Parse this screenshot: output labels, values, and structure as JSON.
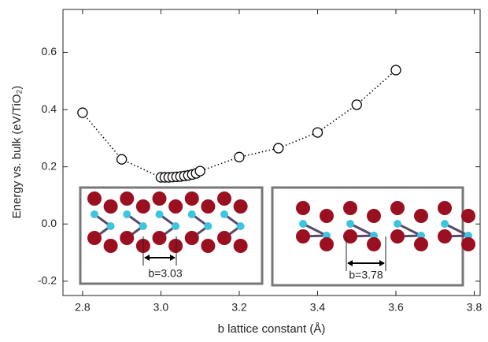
{
  "chart_data": {
    "type": "scatter",
    "xlabel": "b lattice constant (Å)",
    "ylabel": "Energy vs. bulk (eV/TiO₂)",
    "x": [
      2.8,
      2.9,
      3.0,
      3.01,
      3.02,
      3.03,
      3.04,
      3.05,
      3.06,
      3.07,
      3.08,
      3.09,
      3.1,
      3.2,
      3.3,
      3.4,
      3.5,
      3.6
    ],
    "series": [
      {
        "color": "#000000",
        "values": [
          0.389,
          0.226,
          0.163,
          0.163,
          0.163,
          0.164,
          0.165,
          0.166,
          0.168,
          0.17,
          0.173,
          0.177,
          0.185,
          0.234,
          0.265,
          0.32,
          0.417,
          0.538
        ]
      }
    ],
    "xlim": [
      2.75,
      3.815
    ],
    "ylim": [
      -0.25,
      0.75
    ],
    "xticks": [
      2.8,
      {
        "value": 3.0,
        "label": "3.0"
      },
      3.2,
      3.4,
      3.6,
      3.8
    ],
    "yticks": [
      -0.2,
      {
        "value": 0,
        "label": "0.0"
      },
      0.2,
      0.4,
      0.6
    ],
    "annotations": [
      "b=3.03",
      "b=3.78"
    ]
  }
}
